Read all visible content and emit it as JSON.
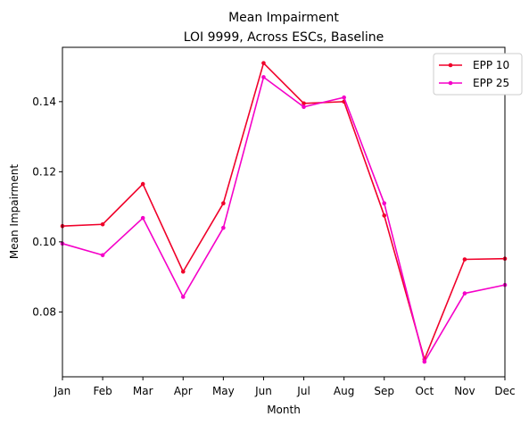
{
  "chart_data": {
    "type": "line",
    "title": "Mean Impairment",
    "subtitle": "LOI 9999, Across ESCs, Baseline",
    "xlabel": "Month",
    "ylabel": "Mean Impairment",
    "categories": [
      "Jan",
      "Feb",
      "Mar",
      "Apr",
      "May",
      "Jun",
      "Jul",
      "Aug",
      "Sep",
      "Oct",
      "Nov",
      "Dec"
    ],
    "ylim": [
      0.0615,
      0.1555
    ],
    "yticks": [
      0.08,
      0.1,
      0.12,
      0.14
    ],
    "ytick_labels": [
      "0.08",
      "0.10",
      "0.12",
      "0.14"
    ],
    "grid": false,
    "legend_position": "top-right",
    "series": [
      {
        "name": "EPP 10",
        "color": "#f0002a",
        "values": [
          0.1045,
          0.105,
          0.1165,
          0.0915,
          0.111,
          0.151,
          0.1395,
          0.14,
          0.1075,
          0.0665,
          0.095,
          0.0952
        ]
      },
      {
        "name": "EPP 25",
        "color": "#f500c8",
        "values": [
          0.0995,
          0.0962,
          0.1068,
          0.0843,
          0.104,
          0.147,
          0.1385,
          0.1412,
          0.111,
          0.0658,
          0.0853,
          0.0877
        ]
      }
    ]
  }
}
